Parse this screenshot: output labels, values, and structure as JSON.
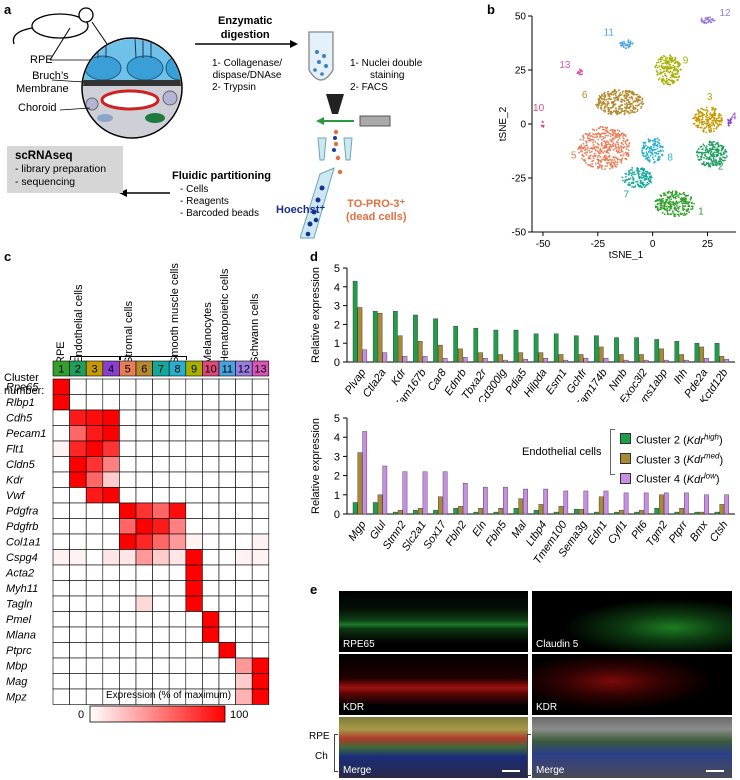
{
  "panels": {
    "a": {
      "label": "a",
      "anatomy": {
        "rpe": "RPE",
        "bruch": "Bruch’s\nMembrane",
        "choroid": "Choroid"
      },
      "step1_title": "Enzymatic\ndigestion",
      "step1_items": [
        "1- Collagenase/",
        "dispase/DNAse",
        "2- Trypsin"
      ],
      "step2_items": [
        "1- Nuclei double",
        "staining",
        "2- FACS"
      ],
      "hoechst": "Hoechst⁺",
      "topro": "TO-PRO-3⁺",
      "dead": "(dead cells)",
      "fluidic_title": "Fluidic partitioning",
      "fluidic_items": [
        "- Cells",
        "- Reagents",
        "- Barcoded beads"
      ],
      "scrnaseq_title": "scRNAseq",
      "scrnaseq_items": [
        "- library preparation",
        "- sequencing"
      ]
    },
    "b": {
      "label": "b"
    },
    "c": {
      "label": "c",
      "cluster_title": "Cluster\nnumber:",
      "groups": [
        "RPE",
        "Endothelial cells",
        "Stromal cells",
        "Smooth muscle cells",
        "Melanocytes",
        "Hematopoietic cells",
        "Schwann cells"
      ],
      "clusters": [
        "1",
        "2",
        "3",
        "4",
        "5",
        "6",
        "7",
        "8",
        "9",
        "10",
        "11",
        "12",
        "13"
      ],
      "cluster_colors": [
        "#33a02c",
        "#1f9e5f",
        "#c49a00",
        "#8a3fd1",
        "#e87d57",
        "#b5892e",
        "#14a899",
        "#2ab0cc",
        "#a7b000",
        "#e0487a",
        "#4aa3e0",
        "#9a7de0",
        "#d955b8"
      ],
      "genes": [
        "Rpe65",
        "Rlbp1",
        "Cdh5",
        "Pecam1",
        "Flt1",
        "Cldn5",
        "Kdr",
        "Vwf",
        "Pdgfra",
        "Pdgfrb",
        "Col1a1",
        "Cspg4",
        "Acta2",
        "Myh11",
        "Tagln",
        "Pmel",
        "Mlana",
        "Ptprc",
        "Mbp",
        "Mag",
        "Mpz"
      ],
      "matrix": [
        [
          100,
          0,
          0,
          0,
          0,
          0,
          0,
          0,
          0,
          0,
          0,
          0,
          0
        ],
        [
          100,
          0,
          0,
          0,
          0,
          0,
          0,
          0,
          0,
          0,
          0,
          0,
          0
        ],
        [
          0,
          90,
          95,
          100,
          0,
          0,
          0,
          0,
          0,
          0,
          0,
          0,
          0
        ],
        [
          0,
          60,
          90,
          100,
          0,
          0,
          0,
          0,
          0,
          0,
          0,
          0,
          0
        ],
        [
          5,
          85,
          100,
          80,
          0,
          0,
          0,
          0,
          0,
          0,
          0,
          0,
          0
        ],
        [
          0,
          100,
          80,
          50,
          0,
          0,
          0,
          0,
          0,
          0,
          0,
          0,
          0
        ],
        [
          0,
          100,
          60,
          20,
          0,
          0,
          0,
          0,
          0,
          0,
          0,
          0,
          0
        ],
        [
          0,
          0,
          90,
          100,
          0,
          0,
          0,
          0,
          0,
          0,
          0,
          0,
          0
        ],
        [
          0,
          0,
          0,
          0,
          100,
          80,
          60,
          95,
          0,
          0,
          0,
          0,
          0
        ],
        [
          0,
          0,
          0,
          0,
          60,
          100,
          90,
          50,
          0,
          0,
          0,
          0,
          0
        ],
        [
          0,
          0,
          0,
          0,
          100,
          85,
          60,
          40,
          5,
          0,
          0,
          0,
          5
        ],
        [
          5,
          5,
          0,
          10,
          10,
          40,
          20,
          10,
          100,
          0,
          0,
          5,
          5
        ],
        [
          0,
          0,
          0,
          0,
          0,
          0,
          0,
          0,
          100,
          0,
          0,
          0,
          0
        ],
        [
          0,
          0,
          0,
          0,
          0,
          0,
          0,
          0,
          100,
          0,
          0,
          0,
          0
        ],
        [
          0,
          0,
          0,
          0,
          0,
          15,
          0,
          0,
          100,
          0,
          0,
          0,
          0
        ],
        [
          0,
          0,
          0,
          0,
          0,
          0,
          0,
          0,
          0,
          100,
          0,
          0,
          0
        ],
        [
          0,
          0,
          0,
          0,
          0,
          0,
          0,
          0,
          0,
          100,
          0,
          0,
          0
        ],
        [
          0,
          0,
          0,
          0,
          0,
          0,
          0,
          0,
          0,
          0,
          100,
          0,
          0
        ],
        [
          0,
          0,
          0,
          0,
          0,
          0,
          0,
          0,
          0,
          0,
          0,
          40,
          100
        ],
        [
          0,
          0,
          0,
          0,
          0,
          0,
          0,
          0,
          0,
          0,
          0,
          20,
          100
        ],
        [
          0,
          0,
          0,
          0,
          0,
          0,
          0,
          0,
          0,
          0,
          0,
          30,
          100
        ]
      ],
      "colorbar_title": "Expression (% of maximum)",
      "colorbar_min": "0",
      "colorbar_max": "100"
    },
    "d": {
      "label": "d",
      "legend_title": "Endothelial cells"
    },
    "e": {
      "label": "e",
      "left": {
        "top": "RPE65",
        "mid": "KDR",
        "bottom": "Merge"
      },
      "right": {
        "top": "Claudin 5",
        "mid": "KDR",
        "bottom": "Merge"
      },
      "side_labels": [
        "RPE",
        "Ch"
      ]
    }
  },
  "chart_data": [
    {
      "type": "scatter",
      "panel": "b",
      "xlabel": "tSNE_1",
      "ylabel": "tSNE_2",
      "xlim": [
        -55,
        38
      ],
      "ylim": [
        -50,
        50
      ],
      "xticks": [
        -50,
        -25,
        0,
        25
      ],
      "yticks": [
        -50,
        -25,
        0,
        25,
        50
      ],
      "clusters": [
        {
          "label": "1",
          "color": "#33a02c",
          "cx": 10,
          "cy": -37,
          "rx": 9,
          "ry": 6,
          "n": 260
        },
        {
          "label": "2",
          "color": "#1f9e5f",
          "cx": 27,
          "cy": -14,
          "rx": 7,
          "ry": 6,
          "n": 200
        },
        {
          "label": "3",
          "color": "#c49a00",
          "cx": 25,
          "cy": 2,
          "rx": 7,
          "ry": 6,
          "n": 190
        },
        {
          "label": "4",
          "color": "#8a3fd1",
          "cx": 35,
          "cy": 1,
          "rx": 1.2,
          "ry": 1.8,
          "n": 14
        },
        {
          "label": "5",
          "color": "#e87d57",
          "cx": -22,
          "cy": -11,
          "rx": 12,
          "ry": 10,
          "n": 420
        },
        {
          "label": "6",
          "color": "#b5892e",
          "cx": -15,
          "cy": 10,
          "rx": 11,
          "ry": 6,
          "n": 320
        },
        {
          "label": "7",
          "color": "#14a899",
          "cx": -7,
          "cy": -25,
          "rx": 7,
          "ry": 5,
          "n": 150
        },
        {
          "label": "8",
          "color": "#2ab0cc",
          "cx": 0,
          "cy": -12,
          "rx": 5,
          "ry": 6,
          "n": 130
        },
        {
          "label": "9",
          "color": "#a7b000",
          "cx": 7,
          "cy": 25,
          "rx": 6,
          "ry": 7,
          "n": 190
        },
        {
          "label": "10",
          "color": "#e0487a",
          "cx": -50,
          "cy": 0,
          "rx": 0.8,
          "ry": 1.5,
          "n": 8
        },
        {
          "label": "11",
          "color": "#4aa3e0",
          "cx": -12,
          "cy": 37,
          "rx": 3,
          "ry": 2,
          "n": 40
        },
        {
          "label": "12",
          "color": "#9a7de0",
          "cx": 25,
          "cy": 48,
          "rx": 3.5,
          "ry": 1.6,
          "n": 40
        },
        {
          "label": "13",
          "color": "#d955b8",
          "cx": -33,
          "cy": 24,
          "rx": 1.4,
          "ry": 1.4,
          "n": 16
        }
      ],
      "label_positions": [
        {
          "label": "1",
          "x": 22,
          "y": -42
        },
        {
          "label": "2",
          "x": 31,
          "y": -21
        },
        {
          "label": "3",
          "x": 26,
          "y": 11
        },
        {
          "label": "4",
          "x": 37,
          "y": 2
        },
        {
          "label": "5",
          "x": -36,
          "y": -16
        },
        {
          "label": "6",
          "x": -31,
          "y": 12
        },
        {
          "label": "7",
          "x": -12,
          "y": -34
        },
        {
          "label": "8",
          "x": 8,
          "y": -17
        },
        {
          "label": "9",
          "x": 15,
          "y": 28
        },
        {
          "label": "10",
          "x": -52,
          "y": 6
        },
        {
          "label": "11",
          "x": -20,
          "y": 41
        },
        {
          "label": "12",
          "x": 33,
          "y": 50
        },
        {
          "label": "13",
          "x": -40,
          "y": 26
        }
      ]
    },
    {
      "type": "bar",
      "panel": "d-top",
      "ylabel": "Relative expression",
      "ylim": [
        0,
        5
      ],
      "yticks": [
        0,
        1,
        2,
        3,
        4,
        5
      ],
      "categories": [
        "Plvap",
        "Ctla2a",
        "Kdr",
        "Fam167b",
        "Car8",
        "Ednrb",
        "Tbxa2r",
        "Cd300lg",
        "Pdia5",
        "Hilpda",
        "Esm1",
        "Gchfr",
        "Fam174b",
        "Nmb",
        "Exoc3l2",
        "Ivns1abp",
        "Ihh",
        "Pde2a",
        "Kctd12b"
      ],
      "series": [
        {
          "name": "Cluster 2",
          "color": "#1f9e4a",
          "values": [
            4.3,
            2.7,
            2.7,
            2.5,
            2.3,
            1.9,
            1.8,
            1.7,
            1.7,
            1.5,
            1.5,
            1.4,
            1.4,
            1.3,
            1.3,
            1.2,
            1.1,
            1.0,
            1.0
          ]
        },
        {
          "name": "Cluster 3",
          "color": "#a88a35",
          "values": [
            2.9,
            2.6,
            1.4,
            1.1,
            0.9,
            0.7,
            0.5,
            0.4,
            0.5,
            0.5,
            0.4,
            0.4,
            0.8,
            0.4,
            0.4,
            0.7,
            0.4,
            0.8,
            0.3
          ]
        },
        {
          "name": "Cluster 4",
          "color": "#c88ee6",
          "values": [
            0.65,
            0.5,
            0.3,
            0.3,
            0.2,
            0.25,
            0.2,
            0.1,
            0.15,
            0.2,
            0.1,
            0.2,
            0.2,
            0.1,
            0.1,
            0.1,
            0.1,
            0.2,
            0.15
          ]
        }
      ]
    },
    {
      "type": "bar",
      "panel": "d-bottom",
      "ylabel": "Relative expression",
      "ylim": [
        0,
        5
      ],
      "yticks": [
        0,
        1,
        2,
        3,
        4,
        5
      ],
      "categories": [
        "Mgp",
        "Glul",
        "Stmn2",
        "Slc2a1",
        "Sox17",
        "Fbln2",
        "Eln",
        "Fbln5",
        "Mal",
        "Ltbp4",
        "Tmem100",
        "Sema3g",
        "Edn1",
        "Cyfl1",
        "Plt6",
        "Tgm2",
        "Ptprr",
        "Bmx",
        "Ctsh"
      ],
      "series": [
        {
          "name": "Cluster 2 (Kdr^high)",
          "color": "#1f9e4a",
          "values": [
            0.6,
            0.6,
            0.1,
            0.2,
            0.2,
            0.3,
            0.1,
            0.1,
            0.3,
            0.2,
            0.1,
            0.25,
            0.1,
            0.1,
            0.1,
            0.3,
            0.1,
            0.1,
            0.1
          ]
        },
        {
          "name": "Cluster 3 (Kdr^med)",
          "color": "#a88a35",
          "values": [
            3.2,
            1.0,
            0.2,
            0.3,
            0.9,
            0.4,
            0.3,
            0.3,
            0.8,
            0.5,
            0.4,
            0.25,
            0.9,
            0.2,
            0.2,
            1.0,
            0.3,
            0.1,
            0.5
          ]
        },
        {
          "name": "Cluster 4 (Kdr^low)",
          "color": "#c88ee6",
          "values": [
            4.3,
            2.5,
            2.2,
            2.2,
            2.2,
            1.6,
            1.4,
            1.4,
            1.3,
            1.3,
            1.2,
            1.2,
            1.2,
            1.1,
            1.1,
            1.1,
            1.1,
            1.0,
            1.0
          ]
        }
      ]
    }
  ]
}
